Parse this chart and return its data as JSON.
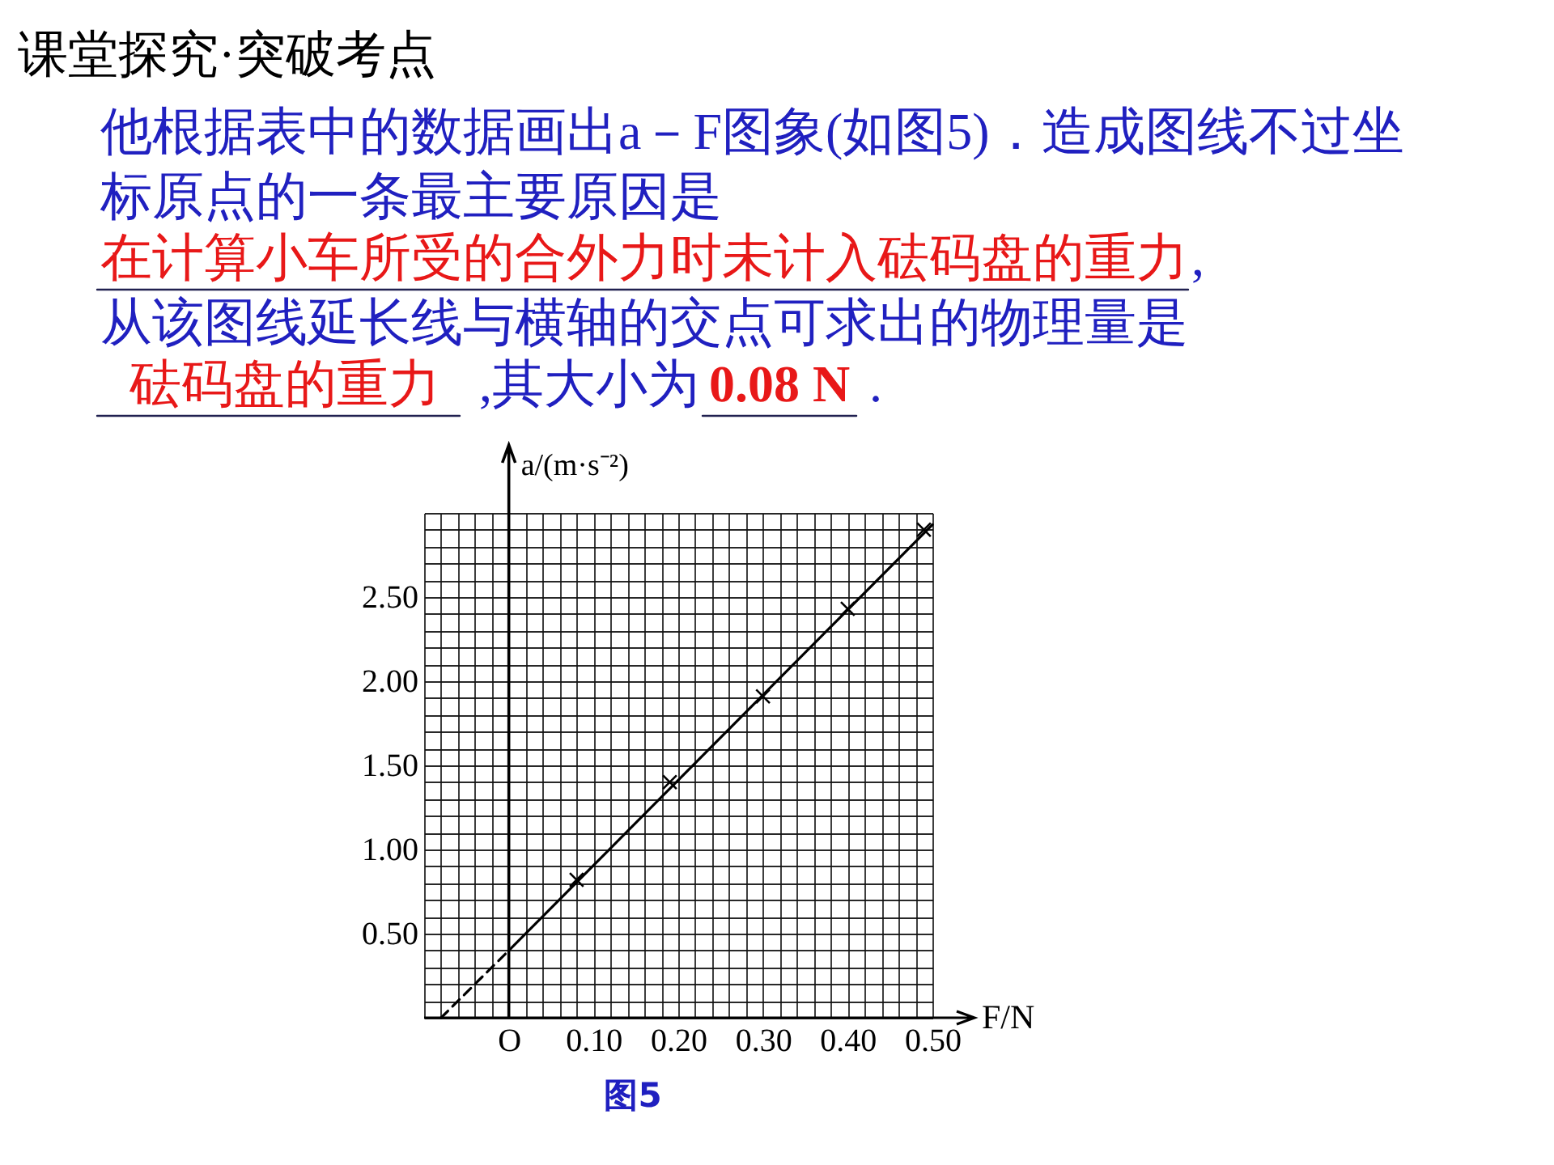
{
  "chart_data": {
    "type": "scatter",
    "title": "课堂探究·突破考点",
    "annotations": [
      "他根据表中的数据画出a－F图象(如图5)．造成图线不过坐",
      "标原点的一条最主要原因是",
      "在计算小车所受的合外力时未计入砝码盘的重力",
      ",",
      "从该图线延长线与横轴的交点可求出的物理量是",
      "砝码盘的重力",
      ",其大小为",
      "0.08 N",
      ".",
      "图5"
    ],
    "xlabel": "F/N",
    "ylabel": "a/(m·s⁻²)",
    "xlim": [
      -0.1,
      0.5
    ],
    "ylim": [
      0,
      3.0
    ],
    "xticks": [
      {
        "value": 0,
        "label": "O"
      },
      {
        "value": 0.1,
        "label": "0.10"
      },
      {
        "value": 0.2,
        "label": "0.20"
      },
      {
        "value": 0.3,
        "label": "0.30"
      },
      {
        "value": 0.4,
        "label": "0.40"
      },
      {
        "value": 0.5,
        "label": "0.50"
      }
    ],
    "yticks": [
      {
        "value": 0.5,
        "label": "0.50"
      },
      {
        "value": 1.0,
        "label": "1.00"
      },
      {
        "value": 1.5,
        "label": "1.50"
      },
      {
        "value": 2.0,
        "label": "2.00"
      },
      {
        "value": 2.5,
        "label": "2.50"
      }
    ],
    "grid": true,
    "series": [
      {
        "marker": "cross",
        "color": "#000000",
        "x": [
          0.08,
          0.19,
          0.3,
          0.4,
          0.49
        ],
        "values": [
          0.82,
          1.4,
          1.91,
          2.43,
          2.9
        ]
      },
      {
        "type": "line",
        "line_style": "solid",
        "color": "#000000",
        "x": [
          0,
          0.5
        ],
        "values": [
          0.4,
          2.93
        ]
      },
      {
        "type": "line",
        "line_style": "dashed",
        "color": "#000000",
        "x": [
          -0.08,
          0
        ],
        "values": [
          0,
          0.4
        ]
      }
    ]
  }
}
